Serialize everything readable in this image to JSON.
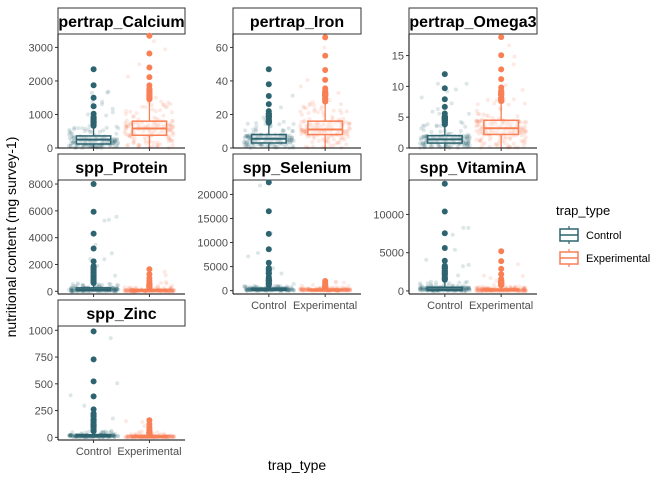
{
  "chart_data": {
    "type": "box",
    "facet_layout": "3-column wrap",
    "xlabel": "trap_type",
    "ylabel": "nutritional content (mg survey-1)",
    "categories": [
      "Control",
      "Experimental"
    ],
    "legend": {
      "title": "trap_type",
      "position": "right",
      "items": [
        {
          "label": "Control",
          "color": "#2e6470"
        },
        {
          "label": "Experimental",
          "color": "#f97f55"
        }
      ]
    },
    "facets": [
      {
        "name": "pertrap_Calcium",
        "ylim": [
          0,
          3400
        ],
        "yticks": [
          0,
          1000,
          2000,
          3000
        ],
        "boxes": [
          {
            "category": "Control",
            "q1": 120,
            "median": 250,
            "q3": 360,
            "min": 0,
            "max": 650,
            "outlier_max": 2350
          },
          {
            "category": "Experimental",
            "q1": 380,
            "median": 580,
            "q3": 800,
            "min": 0,
            "max": 1450,
            "outlier_max": 3350
          }
        ]
      },
      {
        "name": "pertrap_Iron",
        "ylim": [
          0,
          68
        ],
        "yticks": [
          0,
          20,
          40,
          60
        ],
        "boxes": [
          {
            "category": "Control",
            "q1": 3,
            "median": 5.5,
            "q3": 8,
            "min": 0,
            "max": 15,
            "outlier_max": 47
          },
          {
            "category": "Experimental",
            "q1": 8,
            "median": 11,
            "q3": 16,
            "min": 0,
            "max": 27,
            "outlier_max": 66
          }
        ]
      },
      {
        "name": "pertrap_Omega3",
        "ylim": [
          0,
          18.5
        ],
        "yticks": [
          0,
          5,
          10,
          15
        ],
        "boxes": [
          {
            "category": "Control",
            "q1": 0.8,
            "median": 1.4,
            "q3": 2.0,
            "min": 0,
            "max": 3.8,
            "outlier_max": 12
          },
          {
            "category": "Experimental",
            "q1": 2.2,
            "median": 3.2,
            "q3": 4.5,
            "min": 0,
            "max": 7.5,
            "outlier_max": 18
          }
        ]
      },
      {
        "name": "spp_Protein",
        "ylim": [
          -200,
          8300
        ],
        "yticks": [
          0,
          2000,
          4000,
          6000,
          8000
        ],
        "boxes": [
          {
            "category": "Control",
            "q1": 50,
            "median": 130,
            "q3": 260,
            "min": 0,
            "max": 600,
            "outlier_max": 8000
          },
          {
            "category": "Experimental",
            "q1": 20,
            "median": 60,
            "q3": 130,
            "min": 0,
            "max": 300,
            "outlier_max": 1650
          }
        ]
      },
      {
        "name": "spp_Selenium",
        "ylim": [
          -700,
          23000
        ],
        "yticks": [
          0,
          5000,
          10000,
          15000,
          20000
        ],
        "boxes": [
          {
            "category": "Control",
            "q1": 80,
            "median": 250,
            "q3": 500,
            "min": 0,
            "max": 1100,
            "outlier_max": 22500
          },
          {
            "category": "Experimental",
            "q1": 40,
            "median": 130,
            "q3": 280,
            "min": 0,
            "max": 600,
            "outlier_max": 2000
          }
        ]
      },
      {
        "name": "spp_VitaminA",
        "ylim": [
          -400,
          14500
        ],
        "yticks": [
          0,
          5000,
          10000
        ],
        "boxes": [
          {
            "category": "Control",
            "q1": 60,
            "median": 220,
            "q3": 480,
            "min": 0,
            "max": 1100,
            "outlier_max": 14000
          },
          {
            "category": "Experimental",
            "q1": 30,
            "median": 110,
            "q3": 250,
            "min": 0,
            "max": 550,
            "outlier_max": 5200
          }
        ]
      },
      {
        "name": "spp_Zinc",
        "ylim": [
          -25,
          1040
        ],
        "yticks": [
          0,
          250,
          500,
          750,
          1000
        ],
        "boxes": [
          {
            "category": "Control",
            "q1": 6,
            "median": 14,
            "q3": 24,
            "min": 0,
            "max": 55,
            "outlier_max": 990
          },
          {
            "category": "Experimental",
            "q1": 3,
            "median": 7,
            "q3": 13,
            "min": 0,
            "max": 30,
            "outlier_max": 160
          }
        ]
      }
    ]
  }
}
